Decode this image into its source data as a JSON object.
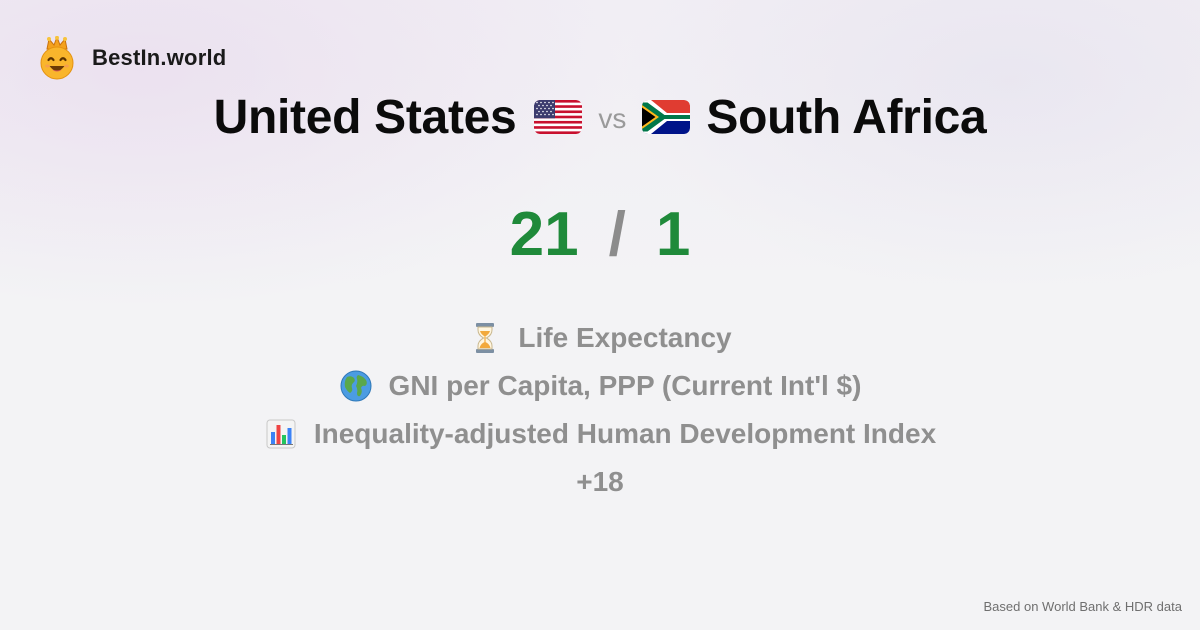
{
  "brand": {
    "name": "BestIn.world",
    "logo_icon": "crowned-smiley-icon"
  },
  "comparison": {
    "left_country": "United States",
    "left_flag_icon": "us-flag-icon",
    "vs_label": "vs",
    "right_country": "South Africa",
    "right_flag_icon": "south-africa-flag-icon"
  },
  "score": {
    "left": "21",
    "separator": "/",
    "right": "1",
    "color": "#1f8a3a"
  },
  "metrics": [
    {
      "icon": "hourglass-icon",
      "label": "Life Expectancy"
    },
    {
      "icon": "globe-icon",
      "label": "GNI per Capita, PPP (Current Int'l $)"
    },
    {
      "icon": "bar-chart-icon",
      "label": "Inequality-adjusted Human Development Index"
    }
  ],
  "more_count": "+18",
  "footer_note": "Based on World Bank & HDR data"
}
